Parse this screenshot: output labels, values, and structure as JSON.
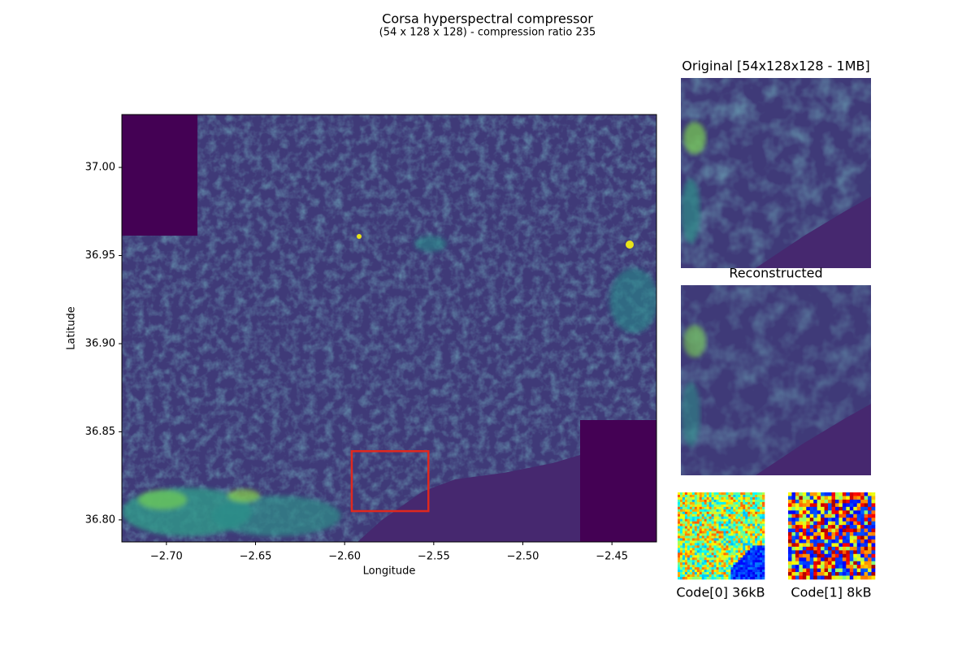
{
  "chart_data": {
    "type": "image",
    "title": "Corsa hyperspectral compressor",
    "subtitle": "(54 x 128 x 128) - compression ratio 235",
    "x_label": "Longitude",
    "y_label": "Latitude",
    "xlim": [
      -2.725,
      -2.425
    ],
    "ylim": [
      36.7875,
      37.03
    ],
    "xticks": [
      {
        "value": -2.7,
        "label": "−2.70"
      },
      {
        "value": -2.65,
        "label": "−2.65"
      },
      {
        "value": -2.6,
        "label": "−2.60"
      },
      {
        "value": -2.55,
        "label": "−2.55"
      },
      {
        "value": -2.5,
        "label": "−2.50"
      },
      {
        "value": -2.45,
        "label": "−2.45"
      }
    ],
    "yticks": [
      {
        "value": 36.8,
        "label": "36.80"
      },
      36.85,
      {
        "value": 36.9,
        "label": "36.90"
      },
      36.95,
      {
        "value": 37,
        "label": "37.00"
      }
    ],
    "highlight_box": {
      "x": [
        -2.596,
        -2.553
      ],
      "y": [
        36.805,
        36.839
      ],
      "color": "#e0281e"
    },
    "panels": [
      {
        "title": "Original [54x128x128 - 1MB]"
      },
      {
        "title": "Reconstructed"
      },
      {
        "title": "Code[0] 36kB"
      },
      {
        "title": "Code[1] 8kB"
      }
    ]
  }
}
